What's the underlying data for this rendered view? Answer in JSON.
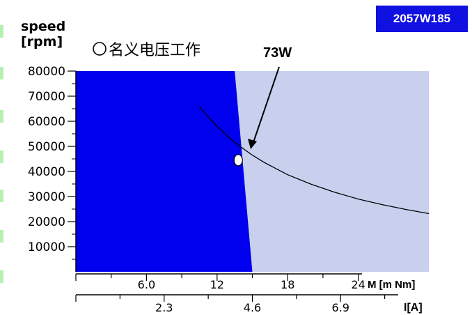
{
  "badge": "2057W185",
  "chart_data": {
    "type": "area",
    "ylabel_line1": "speed",
    "ylabel_line2": "[rpm]",
    "legend_circle_label": "名义电压工作",
    "power_label": "73W",
    "x_axis_torque": {
      "label": "M [m Nm]",
      "ticks": [
        "6.0",
        "12",
        "18",
        "24"
      ],
      "tick_values": [
        6,
        12,
        18,
        24
      ],
      "range": [
        0,
        30
      ]
    },
    "x_axis_current": {
      "label": "I[A]",
      "ticks": [
        "2.3",
        "4.6",
        "6.9"
      ],
      "tick_values": [
        2.3,
        4.6,
        6.9
      ],
      "range": [
        0,
        9.2
      ]
    },
    "y_axis": {
      "ticks": [
        "10000",
        "20000",
        "30000",
        "40000",
        "50000",
        "60000",
        "70000",
        "80000"
      ],
      "tick_values": [
        10000,
        20000,
        30000,
        40000,
        50000,
        60000,
        70000,
        80000
      ],
      "range": [
        0,
        80000
      ]
    },
    "continuous_region_boundary": [
      [
        13.5,
        80000
      ],
      [
        15.0,
        0
      ]
    ],
    "power_curve": {
      "name": "73W",
      "power_w": 73,
      "x": [
        10.5,
        11,
        12,
        13,
        14,
        15,
        16,
        18,
        20,
        22,
        24,
        26,
        28,
        30
      ],
      "y": [
        66000,
        63000,
        58000,
        53600,
        49800,
        46500,
        43600,
        38700,
        34900,
        31700,
        29000,
        26800,
        24900,
        23200
      ]
    },
    "operating_point": {
      "torque": 13.8,
      "speed": 44500
    },
    "colors": {
      "continuous": "#0000ee",
      "intermittent": "#c8d0ee",
      "curve": "#000000"
    }
  }
}
